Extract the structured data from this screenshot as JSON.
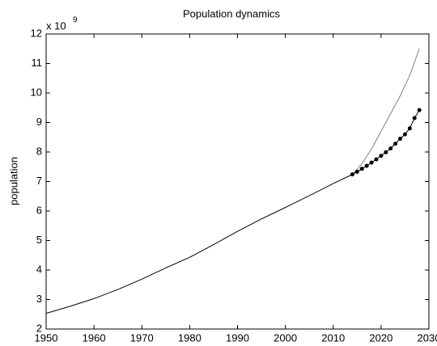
{
  "chart_data": {
    "type": "line",
    "title": "Population dynamics",
    "ylabel": "population",
    "y_multiplier": {
      "base": "x 10",
      "exponent": "9"
    },
    "xlim": [
      1950,
      2030
    ],
    "xticks": [
      1950,
      1960,
      1970,
      1980,
      1990,
      2000,
      2010,
      2020,
      2030
    ],
    "ylim": [
      2,
      12
    ],
    "yticks": [
      2,
      3,
      4,
      5,
      6,
      7,
      8,
      9,
      10,
      11,
      12
    ],
    "grid": false,
    "series": [
      {
        "color": "#000000",
        "marker": "none",
        "x": [
          1950,
          1955,
          1960,
          1965,
          1970,
          1975,
          1980,
          1985,
          1990,
          1995,
          2000,
          2005,
          2010,
          2014
        ],
        "values": [
          2.53,
          2.77,
          3.03,
          3.34,
          3.69,
          4.07,
          4.43,
          4.86,
          5.31,
          5.73,
          6.12,
          6.52,
          6.93,
          7.24
        ]
      },
      {
        "color": "#808080",
        "marker": "none",
        "x": [
          2014,
          2016,
          2018,
          2020,
          2022,
          2024,
          2026,
          2028
        ],
        "values": [
          7.24,
          7.6,
          8.1,
          8.7,
          9.3,
          9.9,
          10.6,
          11.5
        ]
      },
      {
        "color": "#000000",
        "marker": "dot",
        "x": [
          2014,
          2015,
          2016,
          2017,
          2018,
          2019,
          2020,
          2021,
          2022,
          2023,
          2024,
          2025,
          2026,
          2027,
          2028
        ],
        "values": [
          7.24,
          7.33,
          7.43,
          7.53,
          7.64,
          7.75,
          7.87,
          7.99,
          8.12,
          8.28,
          8.45,
          8.6,
          8.8,
          9.15,
          9.42
        ]
      }
    ]
  }
}
